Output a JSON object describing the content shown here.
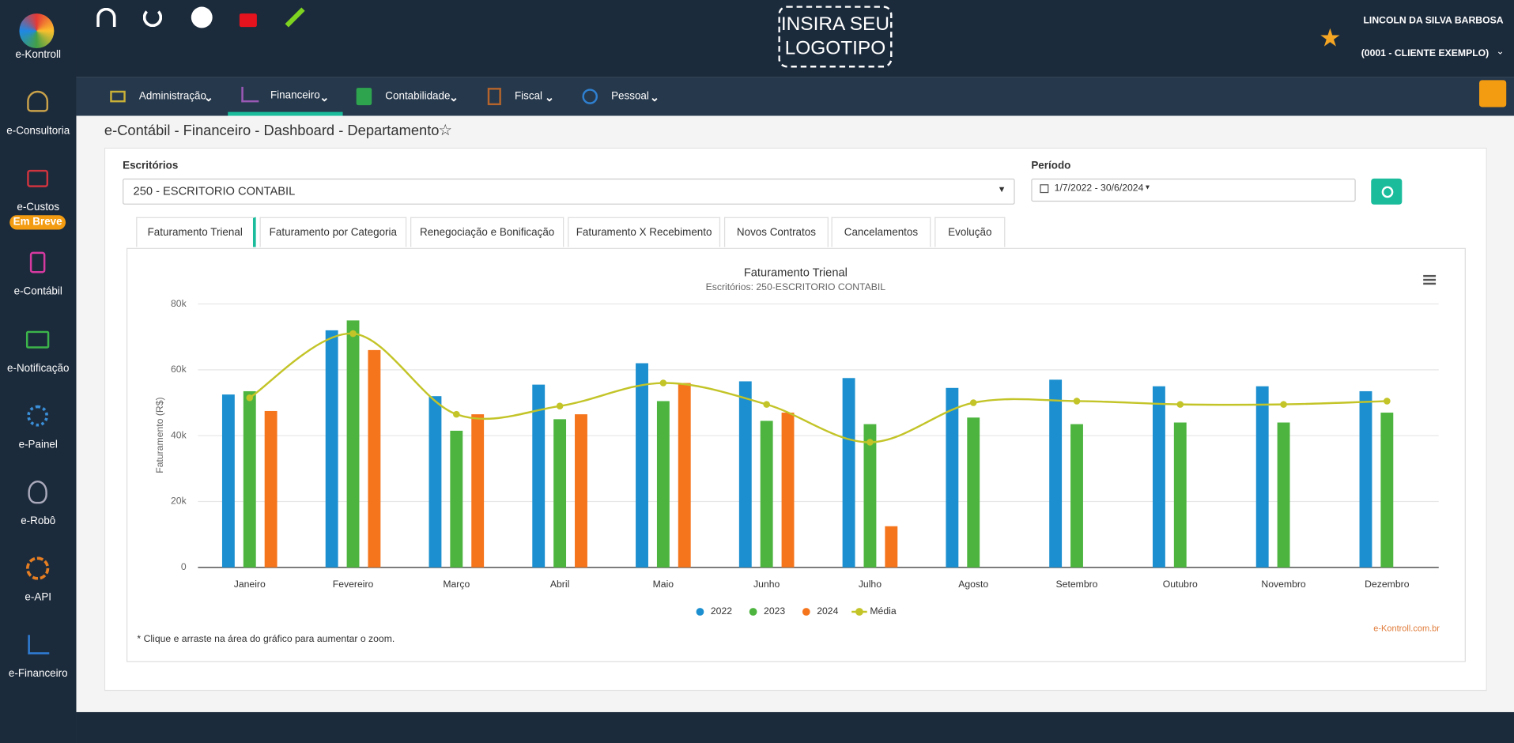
{
  "sidebar": {
    "brand": "e-Kontroll",
    "items": [
      {
        "label": "e-Consultoria"
      },
      {
        "label": "e-Custos",
        "badge": "Em Breve"
      },
      {
        "label": "e-Contábil"
      },
      {
        "label": "e-Notificação"
      },
      {
        "label": "e-Painel"
      },
      {
        "label": "e-Robô"
      },
      {
        "label": "e-API"
      },
      {
        "label": "e-Financeiro"
      }
    ]
  },
  "header": {
    "logo_top": "INSIRA SEU",
    "logo_bottom": "LOGOTIPO",
    "user": "LINCOLN DA SILVA BARBOSA",
    "client": "(0001 - CLIENTE EXEMPLO)"
  },
  "nav": [
    "Administração",
    "Financeiro",
    "Contabilidade",
    "Fiscal",
    "Pessoal"
  ],
  "breadcrumb": "e-Contábil - Financeiro - Dashboard - Departamento",
  "filters": {
    "office_label": "Escritórios",
    "office_value": "250 - ESCRITORIO CONTABIL",
    "period_label": "Período",
    "period_value": "1/7/2022 - 30/6/2024"
  },
  "tabs": [
    "Faturamento Trienal",
    "Faturamento por Categoria",
    "Renegociação e Bonificação",
    "Faturamento X Recebimento",
    "Novos Contratos",
    "Cancelamentos",
    "Evolução"
  ],
  "chart_data": {
    "type": "bar",
    "title": "Faturamento Trienal",
    "subtitle": "Escritórios: 250-ESCRITORIO CONTABIL",
    "y_label": "Faturamento (R$)",
    "categories": [
      "Janeiro",
      "Fevereiro",
      "Março",
      "Abril",
      "Maio",
      "Junho",
      "Julho",
      "Agosto",
      "Setembro",
      "Outubro",
      "Novembro",
      "Dezembro"
    ],
    "series": [
      {
        "name": "2022",
        "color": "#1b8fcf",
        "values": [
          52500,
          72000,
          52000,
          55500,
          62000,
          56500,
          57500,
          54500,
          57000,
          55000,
          55000,
          53500
        ]
      },
      {
        "name": "2023",
        "color": "#4db53f",
        "values": [
          53500,
          75000,
          41500,
          45000,
          50500,
          44500,
          43500,
          45500,
          43500,
          44000,
          44000,
          47000
        ]
      },
      {
        "name": "2024",
        "color": "#f5751d",
        "values": [
          47500,
          66000,
          46500,
          46500,
          56000,
          47000,
          12500,
          null,
          null,
          null,
          null,
          null
        ]
      },
      {
        "name": "Média",
        "color": "#c3c428",
        "type": "line",
        "values": [
          51500,
          71000,
          46500,
          49000,
          56000,
          49500,
          38000,
          50000,
          50500,
          49500,
          49500,
          50500
        ]
      }
    ],
    "ylim": [
      0,
      80000
    ],
    "yticks": [
      0,
      {
        "value": 20000,
        "label": "20k"
      },
      {
        "value": 40000,
        "label": "40k"
      },
      {
        "value": 60000,
        "label": "60k"
      },
      {
        "value": 80000,
        "label": "80k"
      }
    ],
    "grid": true,
    "legend": "bottom"
  },
  "footnote": "* Clique e arraste na área do gráfico para aumentar o zoom.",
  "credit": "e-Kontroll.com.br"
}
